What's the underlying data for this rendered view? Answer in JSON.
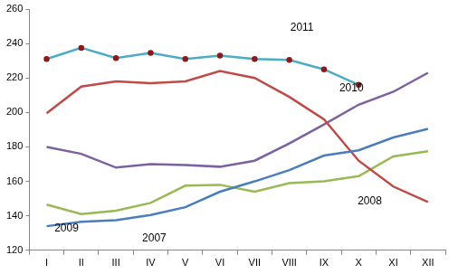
{
  "chart_data": {
    "type": "line",
    "categories": [
      "I",
      "II",
      "III",
      "IV",
      "V",
      "VI",
      "VII",
      "VIII",
      "IX",
      "X",
      "XI",
      "XII"
    ],
    "ylim": [
      120,
      260
    ],
    "yticks": [
      120,
      140,
      160,
      180,
      200,
      220,
      240,
      260
    ],
    "grid": false,
    "series": [
      {
        "name": "2007",
        "color": "#4a7ebb",
        "marker": "none",
        "values": [
          134,
          136.5,
          137.5,
          140.5,
          145,
          154,
          160,
          166.5,
          175,
          178,
          185.5,
          190.5
        ]
      },
      {
        "name": "2008",
        "color": "#be4b48",
        "marker": "none",
        "values": [
          199.5,
          215,
          218,
          217,
          218,
          224,
          220,
          209,
          196,
          172,
          157,
          148
        ]
      },
      {
        "name": "2009",
        "color": "#98b954",
        "marker": "none",
        "values": [
          146.5,
          141,
          143,
          147.5,
          157.5,
          158,
          154,
          159,
          160,
          163,
          174.5,
          177.5
        ]
      },
      {
        "name": "2010",
        "color": "#7d60a0",
        "marker": "none",
        "values": [
          180,
          176,
          168,
          170,
          169.5,
          168.5,
          172,
          182,
          193,
          204.5,
          212,
          223
        ]
      },
      {
        "name": "2011",
        "color": "#4bacc6",
        "marker": "circle",
        "values": [
          231,
          237.5,
          231.5,
          234.5,
          231,
          233,
          231,
          230.5,
          225,
          216,
          null,
          null
        ]
      }
    ]
  }
}
